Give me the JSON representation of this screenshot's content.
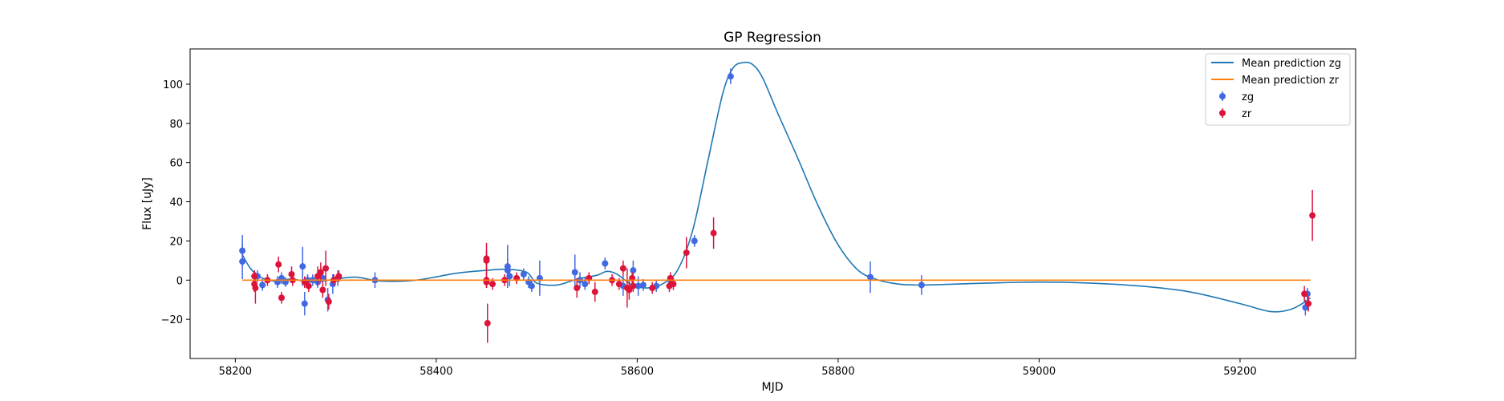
{
  "chart_data": {
    "type": "scatter",
    "title": "GP Regression",
    "xlabel": "MJD",
    "ylabel": "Flux [uJy]",
    "xlim": [
      58155,
      59315
    ],
    "ylim": [
      -40,
      118
    ],
    "xticks": [
      58200,
      58400,
      58600,
      58800,
      59000,
      59200
    ],
    "yticks": [
      -20,
      0,
      20,
      40,
      60,
      80,
      100
    ],
    "grid": false,
    "legend_position": "top-right",
    "colors": {
      "zg": "#4169e1",
      "zr": "#dc143c",
      "mean_zg": "#1f77b4",
      "mean_zr": "#ff7f0e"
    },
    "legend": [
      "Mean prediction zg",
      "Mean prediction zr",
      "zg",
      "zr"
    ],
    "mean_prediction_zg": {
      "name": "Mean prediction zg",
      "x": [
        58207,
        58215,
        58225,
        58240,
        58255,
        58270,
        58285,
        58300,
        58320,
        58345,
        58380,
        58420,
        58450,
        58470,
        58490,
        58500,
        58520,
        58540,
        58560,
        58570,
        58580,
        58595,
        58610,
        58625,
        58640,
        58655,
        58670,
        58685,
        58695,
        58705,
        58715,
        58725,
        58740,
        58760,
        58780,
        58800,
        58820,
        58840,
        58860,
        58880,
        58900,
        58950,
        59000,
        59050,
        59100,
        59150,
        59200,
        59230,
        59250,
        59265,
        59270
      ],
      "y": [
        13,
        6,
        1.5,
        -0.5,
        0.5,
        -0.5,
        -0.5,
        0.5,
        1.5,
        -0.5,
        0,
        3.5,
        5,
        5.5,
        4,
        -1.5,
        -2.5,
        0.5,
        2.5,
        4.5,
        3,
        -2.5,
        -4,
        -2,
        5,
        25,
        60,
        95,
        108,
        111,
        110,
        103,
        85,
        62,
        38,
        18,
        5,
        0,
        -2,
        -2.5,
        -2.3,
        -1.5,
        -1,
        -1.5,
        -3,
        -6,
        -12,
        -16,
        -15,
        -11,
        -9
      ]
    },
    "mean_prediction_zr": {
      "name": "Mean prediction zr",
      "x": [
        58207,
        59270
      ],
      "y": [
        0,
        0
      ]
    },
    "series": [
      {
        "name": "zg",
        "points": [
          [
            58207,
            15,
            8
          ],
          [
            58207,
            9.5,
            9
          ],
          [
            58222,
            2,
            3
          ],
          [
            58227,
            -2.5,
            3
          ],
          [
            58242,
            -1,
            3
          ],
          [
            58246,
            1,
            3
          ],
          [
            58250,
            -1,
            2.5
          ],
          [
            58267,
            7,
            10
          ],
          [
            58269,
            -12,
            6
          ],
          [
            58272,
            0,
            3
          ],
          [
            58277,
            0,
            3
          ],
          [
            58282,
            -1,
            3
          ],
          [
            58287,
            1,
            3
          ],
          [
            58292,
            -10,
            6
          ],
          [
            58297,
            -2,
            5
          ],
          [
            58302,
            1,
            4
          ],
          [
            58339,
            0,
            4
          ],
          [
            58471,
            7,
            11
          ],
          [
            58471,
            5,
            6
          ],
          [
            58473,
            2,
            5
          ],
          [
            58487,
            3,
            3
          ],
          [
            58492,
            -1,
            3
          ],
          [
            58495,
            -3,
            3
          ],
          [
            58503,
            1,
            9
          ],
          [
            58538,
            4,
            9
          ],
          [
            58543,
            0,
            4
          ],
          [
            58548,
            -2,
            3
          ],
          [
            58568,
            8.5,
            3
          ],
          [
            58586,
            -3,
            5
          ],
          [
            58596,
            5,
            5
          ],
          [
            58601,
            -3,
            5
          ],
          [
            58606,
            -2.5,
            3
          ],
          [
            58619,
            -3,
            3
          ],
          [
            58634,
            -1,
            3
          ],
          [
            58657,
            20,
            3
          ],
          [
            58693,
            104,
            4
          ],
          [
            58832,
            1.5,
            8
          ],
          [
            58883,
            -2.5,
            5
          ],
          [
            59265,
            -14,
            4
          ],
          [
            59267,
            -7,
            3
          ]
        ]
      },
      {
        "name": "zr",
        "points": [
          [
            58219,
            2,
            3
          ],
          [
            58219,
            -2,
            4
          ],
          [
            58220,
            -4,
            8
          ],
          [
            58232,
            0,
            3
          ],
          [
            58243,
            8,
            4
          ],
          [
            58246,
            -9,
            3
          ],
          [
            58256,
            3,
            4
          ],
          [
            58257,
            0,
            3
          ],
          [
            58269,
            -1,
            3
          ],
          [
            58273,
            -3,
            3
          ],
          [
            58282,
            2,
            5
          ],
          [
            58285,
            4,
            5
          ],
          [
            58287,
            -5,
            4
          ],
          [
            58290,
            6,
            9
          ],
          [
            58293,
            -11,
            4
          ],
          [
            58298,
            0,
            3
          ],
          [
            58303,
            2,
            3
          ],
          [
            58450,
            11,
            8
          ],
          [
            58450,
            10,
            5
          ],
          [
            58450,
            0,
            4
          ],
          [
            58450,
            -1,
            3
          ],
          [
            58451,
            -22,
            10
          ],
          [
            58456,
            -2,
            3
          ],
          [
            58468,
            0,
            3
          ],
          [
            58480,
            1,
            3
          ],
          [
            58540,
            -4,
            5
          ],
          [
            58552,
            1,
            3
          ],
          [
            58558,
            -6,
            5
          ],
          [
            58575,
            0,
            3
          ],
          [
            58582,
            -2,
            3
          ],
          [
            58586,
            6,
            4
          ],
          [
            58590,
            -4,
            10
          ],
          [
            58592,
            -5,
            5
          ],
          [
            58595,
            1,
            3
          ],
          [
            58596,
            -3,
            3
          ],
          [
            58615,
            -4,
            3
          ],
          [
            58632,
            -3,
            3
          ],
          [
            58633,
            1,
            3
          ],
          [
            58636,
            -2,
            3
          ],
          [
            58649,
            14,
            8
          ],
          [
            58676,
            24,
            8
          ],
          [
            59264,
            -7,
            4
          ],
          [
            59268,
            -12,
            4
          ],
          [
            59272,
            33,
            13
          ]
        ]
      }
    ]
  }
}
